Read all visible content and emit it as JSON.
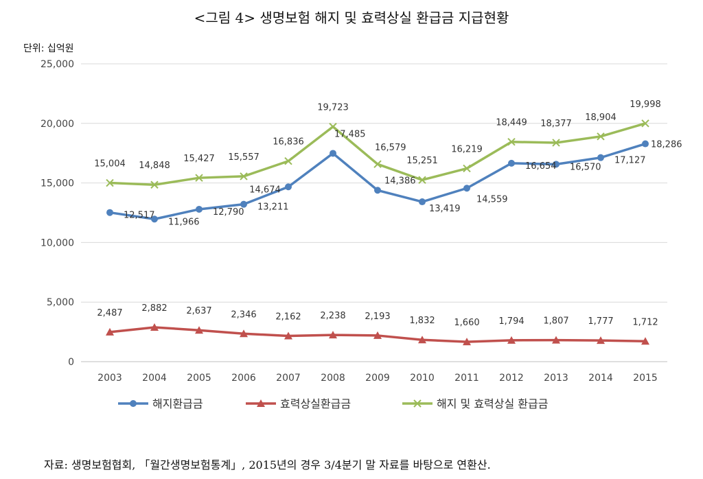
{
  "title": "<그림 4> 생명보험 해지 및 효력상실 환급금 지급현황",
  "unit_label": "단위: 십억원",
  "footnote": "자료: 생명보험협회, 「월간생명보험통계」, 2015년의 경우 3/4분기 말 자료를 바탕으로 연환산.",
  "chart_data": {
    "type": "line",
    "title": "<그림 4> 생명보험 해지 및 효력상실 환급금 지급현황",
    "xlabel": "",
    "ylabel": "단위: 십억원",
    "categories": [
      "2003",
      "2004",
      "2005",
      "2006",
      "2007",
      "2008",
      "2009",
      "2010",
      "2011",
      "2012",
      "2013",
      "2014",
      "2015"
    ],
    "ylim": [
      0,
      25000
    ],
    "yticks": [
      0,
      5000,
      10000,
      15000,
      20000,
      25000
    ],
    "ytick_labels": [
      "0",
      "5,000",
      "10,000",
      "15,000",
      "20,000",
      "25,000"
    ],
    "grid": true,
    "legend_position": "bottom",
    "series": [
      {
        "name": "해지환급금",
        "color": "#4f81bd",
        "marker": "circle",
        "values": [
          12517,
          11966,
          12790,
          13211,
          14674,
          17485,
          14386,
          13419,
          14559,
          16654,
          16570,
          17127,
          18286
        ],
        "labels": [
          "12,517",
          "11,966",
          "12,790",
          "13,211",
          "14,674",
          "17,485",
          "14,386",
          "13,419",
          "14,559",
          "16,654",
          "16,570",
          "17,127",
          "18,286"
        ]
      },
      {
        "name": "효력상실환급금",
        "color": "#c0504d",
        "marker": "triangle",
        "values": [
          2487,
          2882,
          2637,
          2346,
          2162,
          2238,
          2193,
          1832,
          1660,
          1794,
          1807,
          1777,
          1712
        ],
        "labels": [
          "2,487",
          "2,882",
          "2,637",
          "2,346",
          "2,162",
          "2,238",
          "2,193",
          "1,832",
          "1,660",
          "1,794",
          "1,807",
          "1,777",
          "1,712"
        ]
      },
      {
        "name": "해지 및 효력상실 환급금",
        "color": "#9bbb59",
        "marker": "x",
        "values": [
          15004,
          14848,
          15427,
          15557,
          16836,
          19723,
          16579,
          15251,
          16219,
          18449,
          18377,
          18904,
          19998
        ],
        "labels": [
          "15,004",
          "14,848",
          "15,427",
          "15,557",
          "16,836",
          "19,723",
          "16,579",
          "15,251",
          "16,219",
          "18,449",
          "18,377",
          "18,904",
          "19,998"
        ]
      }
    ]
  }
}
